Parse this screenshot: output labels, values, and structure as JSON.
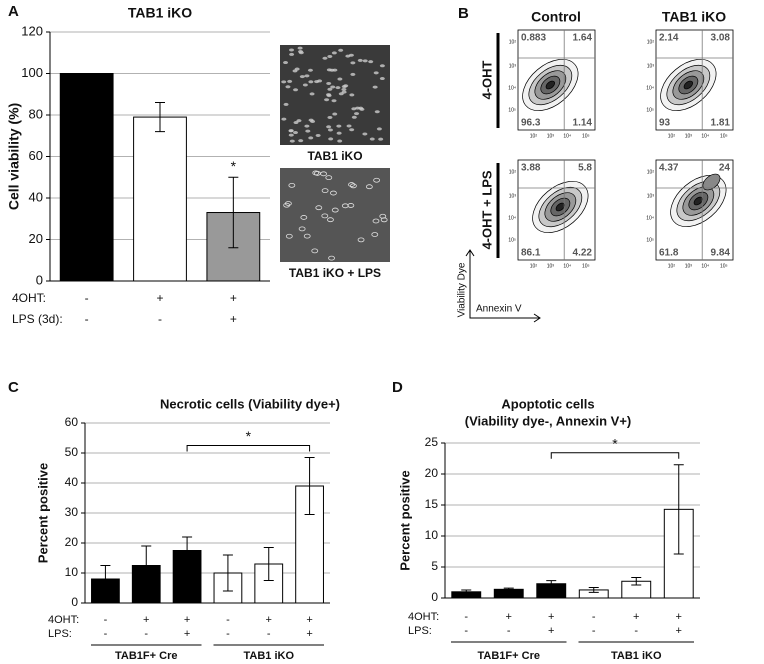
{
  "panels": [
    "A",
    "B",
    "C",
    "D"
  ],
  "micrographs": [
    "TAB1 iKO",
    "TAB1 iKO + LPS"
  ],
  "flow": {
    "columns": [
      "Control",
      "TAB1 iKO"
    ],
    "rows": [
      "4-OHT",
      "4-OHT + LPS"
    ],
    "y_label": "Viability Dye",
    "x_label": "Annexin V",
    "axis_ticks": [
      "10²",
      "10³",
      "10⁴",
      "10⁵"
    ],
    "plots": [
      {
        "upper_left": 0.883,
        "upper_right": 1.64,
        "lower_left": 96.3,
        "lower_right": 1.14
      },
      {
        "upper_left": 2.14,
        "upper_right": 3.08,
        "lower_left": 93,
        "lower_right": 1.81
      },
      {
        "upper_left": 3.88,
        "upper_right": 5.8,
        "lower_left": 86.1,
        "lower_right": 4.22
      },
      {
        "upper_left": 4.37,
        "upper_right": 24,
        "lower_left": 61.8,
        "lower_right": 9.84
      }
    ]
  },
  "chart_data": [
    {
      "type": "bar",
      "title": "TAB1 iKO",
      "y_label": "Cell viability (%)",
      "values": [
        100,
        79,
        33
      ],
      "errors": [
        0,
        7,
        17
      ],
      "colors": [
        "#000000",
        "#ffffff",
        "#999999"
      ],
      "ylim": [
        0,
        120
      ],
      "yticks": [
        0,
        20,
        40,
        60,
        80,
        100,
        120
      ],
      "grid": true,
      "conditions": [
        {
          "label": "4OHT:",
          "signs": [
            "-",
            "+",
            "+"
          ]
        },
        {
          "label": "LPS (3d):",
          "signs": [
            "-",
            "-",
            "+"
          ]
        }
      ],
      "star": {
        "bar": 2,
        "label": "*"
      }
    },
    {
      "type": "bar",
      "title": "Necrotic cells (Viability dye+)",
      "y_label": "Percent positive",
      "values": [
        8,
        12.5,
        17.5,
        10,
        13,
        39
      ],
      "errors": [
        4.5,
        6.5,
        4.5,
        6,
        5.5,
        9.5
      ],
      "colors": [
        "#000000",
        "#000000",
        "#000000",
        "#ffffff",
        "#ffffff",
        "#ffffff"
      ],
      "ylim": [
        0,
        60
      ],
      "yticks": [
        0,
        10,
        20,
        30,
        40,
        50,
        60
      ],
      "grid": true,
      "conditions": [
        {
          "label": "4OHT:",
          "signs": [
            "-",
            "+",
            "+",
            "-",
            "+",
            "+"
          ]
        },
        {
          "label": "LPS:",
          "signs": [
            "-",
            "-",
            "+",
            "-",
            "-",
            "+"
          ]
        }
      ],
      "groups": [
        "TAB1F+ Cre",
        "TAB1 iKO"
      ],
      "bracket": {
        "bars": [
          2,
          5
        ],
        "label": "*"
      }
    },
    {
      "type": "bar",
      "title": [
        "Apoptotic cells",
        "(Viability dye-, Annexin V+)"
      ],
      "y_label": "Percent positive",
      "values": [
        1,
        1.4,
        2.3,
        1.3,
        2.7,
        14.3
      ],
      "errors": [
        0.3,
        0.2,
        0.5,
        0.4,
        0.6,
        7.2
      ],
      "colors": [
        "#000000",
        "#000000",
        "#000000",
        "#ffffff",
        "#ffffff",
        "#ffffff"
      ],
      "ylim": [
        0,
        25
      ],
      "yticks": [
        0,
        5,
        10,
        15,
        20,
        25
      ],
      "grid": true,
      "conditions": [
        {
          "label": "4OHT:",
          "signs": [
            "-",
            "+",
            "+",
            "-",
            "+",
            "+"
          ]
        },
        {
          "label": "LPS:",
          "signs": [
            "-",
            "-",
            "+",
            "-",
            "-",
            "+"
          ]
        }
      ],
      "groups": [
        "TAB1F+ Cre",
        "TAB1 iKO"
      ],
      "bracket": {
        "bars": [
          2,
          5
        ],
        "label": "*"
      }
    }
  ]
}
